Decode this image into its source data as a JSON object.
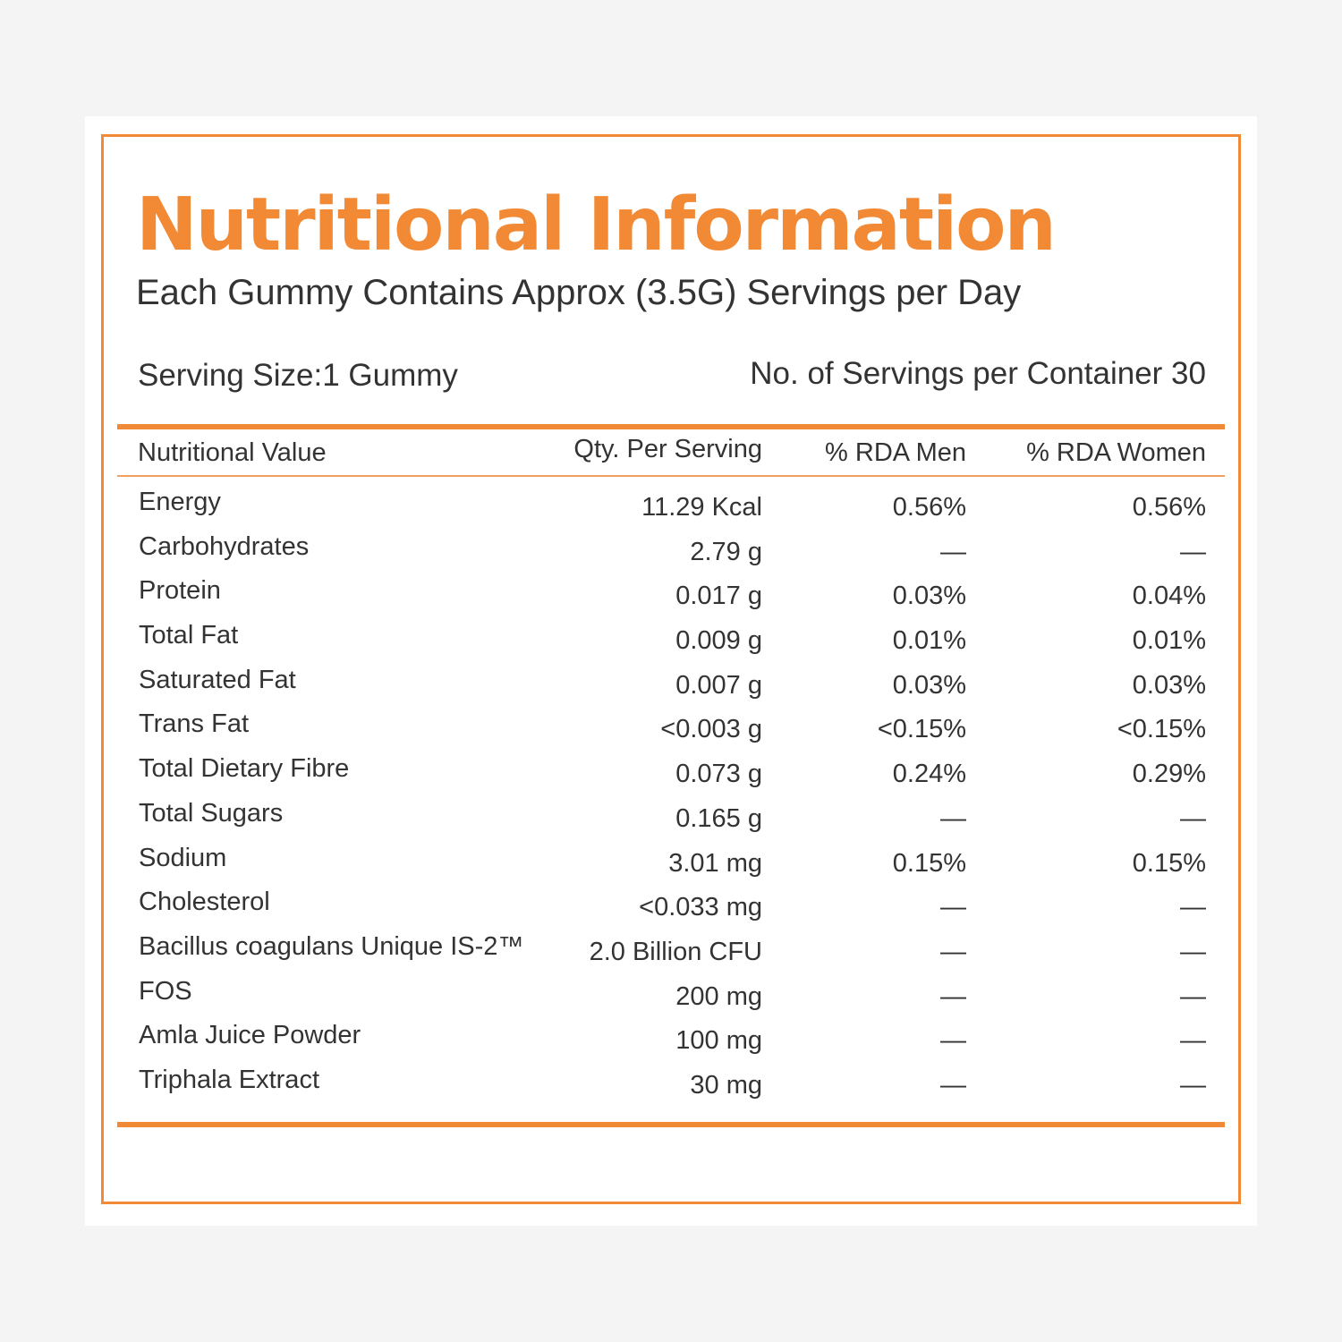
{
  "title": "Nutritional Information",
  "subtitle": "Each Gummy Contains Approx (3.5G) Servings per Day",
  "serving_size": "Serving Size:1 Gummy",
  "servings_per_container": "No. of Servings per Container 30",
  "accent_color": "#f08a36",
  "columns": {
    "name": "Nutritional Value",
    "qty": "Qty. Per Serving",
    "rda_men": "% RDA Men",
    "rda_women": "% RDA Women"
  },
  "rows": [
    {
      "name": "Energy",
      "qty": "11.29 Kcal",
      "rda_men": "0.56%",
      "rda_women": "0.56%"
    },
    {
      "name": "Carbohydrates",
      "qty": "2.79 g",
      "rda_men": "—",
      "rda_women": "—"
    },
    {
      "name": "Protein",
      "qty": "0.017 g",
      "rda_men": "0.03%",
      "rda_women": "0.04%"
    },
    {
      "name": "Total Fat",
      "qty": "0.009 g",
      "rda_men": "0.01%",
      "rda_women": "0.01%"
    },
    {
      "name": "Saturated Fat",
      "qty": "0.007 g",
      "rda_men": "0.03%",
      "rda_women": "0.03%"
    },
    {
      "name": "Trans Fat",
      "qty": "<0.003 g",
      "rda_men": "<0.15%",
      "rda_women": "<0.15%"
    },
    {
      "name": "Total Dietary Fibre",
      "qty": "0.073 g",
      "rda_men": "0.24%",
      "rda_women": "0.29%"
    },
    {
      "name": "Total Sugars",
      "qty": "0.165 g",
      "rda_men": "—",
      "rda_women": "—"
    },
    {
      "name": "Sodium",
      "qty": "3.01 mg",
      "rda_men": "0.15%",
      "rda_women": "0.15%"
    },
    {
      "name": "Cholesterol",
      "qty": "<0.033 mg",
      "rda_men": "—",
      "rda_women": "—"
    },
    {
      "name": "Bacillus coagulans Unique IS-2™",
      "qty": "2.0 Billion CFU",
      "rda_men": "—",
      "rda_women": "—"
    },
    {
      "name": "FOS",
      "qty": "200 mg",
      "rda_men": "—",
      "rda_women": "—"
    },
    {
      "name": "Amla Juice Powder",
      "qty": "100 mg",
      "rda_men": "—",
      "rda_women": "—"
    },
    {
      "name": "Triphala Extract",
      "qty": "30 mg",
      "rda_men": "—",
      "rda_women": "—"
    }
  ]
}
